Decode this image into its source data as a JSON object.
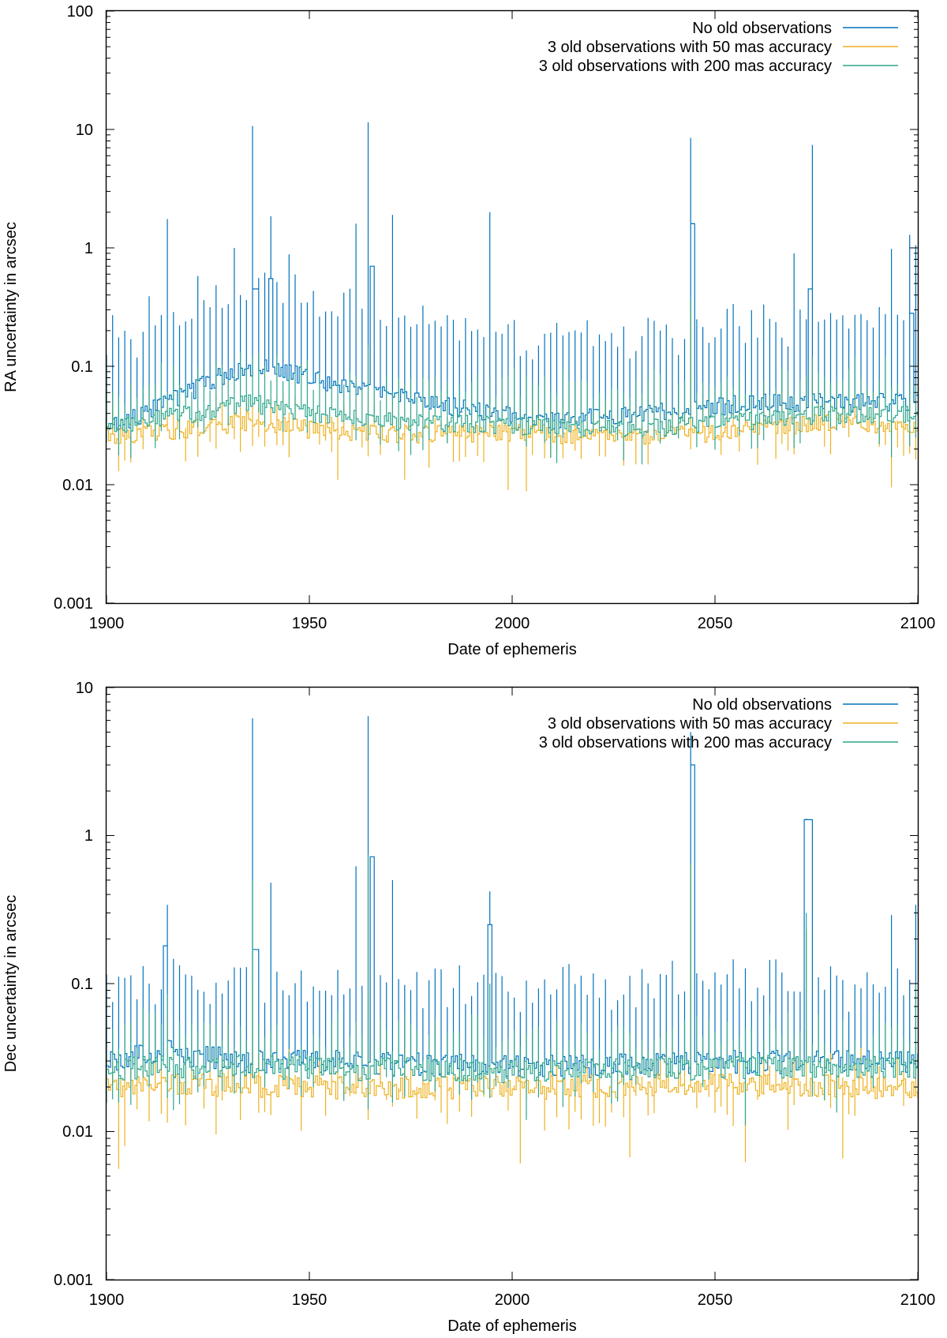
{
  "chart_data": [
    {
      "type": "line",
      "step": true,
      "xlabel": "Date of ephemeris",
      "ylabel": "RA uncertainty in arcsec",
      "xlim": [
        1900,
        2100
      ],
      "ylim": [
        0.001,
        100
      ],
      "yscale": "log",
      "x_ticks": [
        "1900",
        "1950",
        "2000",
        "2050",
        "2100"
      ],
      "y_ticks": [
        "0.001",
        "0.01",
        "0.1",
        "1",
        "10",
        "100"
      ],
      "legend_position": "top-right",
      "series": [
        {
          "name": "No old observations",
          "color": "#0072bd",
          "baseline": [
            [
              1900,
              0.03
            ],
            [
              1915,
              0.05
            ],
            [
              1930,
              0.09
            ],
            [
              1940,
              0.1
            ],
            [
              1950,
              0.08
            ],
            [
              1965,
              0.06
            ],
            [
              1980,
              0.05
            ],
            [
              1995,
              0.04
            ],
            [
              2010,
              0.035
            ],
            [
              2030,
              0.04
            ],
            [
              2045,
              0.045
            ],
            [
              2060,
              0.05
            ],
            [
              2080,
              0.05
            ],
            [
              2100,
              0.05
            ]
          ],
          "spike_factor": 4.5,
          "peaks": [
            [
              1902,
              0.27
            ],
            [
              1911,
              0.39
            ],
            [
              1915,
              1.75
            ],
            [
              1923,
              0.58
            ],
            [
              1932,
              1.0
            ],
            [
              1936,
              10.7
            ],
            [
              1941,
              1.85
            ],
            [
              1945,
              0.88
            ],
            [
              1961,
              1.6
            ],
            [
              1965,
              11.5
            ],
            [
              1970,
              1.9
            ],
            [
              1995,
              2.0
            ],
            [
              2044,
              8.5
            ],
            [
              2069,
              0.9
            ],
            [
              2074,
              7.4
            ],
            [
              2094,
              0.98
            ],
            [
              2099,
              1.05
            ]
          ],
          "plateaus": [
            [
              1936,
              1937.5,
              0.45
            ],
            [
              1940,
              1941,
              0.55
            ],
            [
              1965,
              1966,
              0.7
            ],
            [
              2044,
              2045,
              1.6
            ],
            [
              2073,
              2074,
              0.45
            ],
            [
              2098,
              2099,
              0.28
            ]
          ],
          "troughs": []
        },
        {
          "name": "3 old observations with 50 mas accuracy",
          "color": "#edb120",
          "baseline": [
            [
              1900,
              0.025
            ],
            [
              1920,
              0.03
            ],
            [
              1935,
              0.035
            ],
            [
              1950,
              0.03
            ],
            [
              1970,
              0.027
            ],
            [
              2000,
              0.028
            ],
            [
              2030,
              0.025
            ],
            [
              2060,
              0.03
            ],
            [
              2080,
              0.035
            ],
            [
              2100,
              0.03
            ]
          ],
          "spike_factor": 1.35,
          "peaks": [
            [
              1936,
              0.05
            ],
            [
              1965,
              0.06
            ],
            [
              2044,
              0.3
            ],
            [
              2074,
              0.1
            ]
          ],
          "plateaus": [],
          "troughs": [
            [
              1903,
              0.013
            ],
            [
              1957,
              0.011
            ],
            [
              1974,
              0.011
            ],
            [
              1999,
              0.009
            ],
            [
              2003,
              0.0088
            ],
            [
              2094,
              0.0095
            ]
          ]
        },
        {
          "name": "3 old observations with 200 mas accuracy",
          "color": "#2ca58d",
          "baseline": [
            [
              1900,
              0.03
            ],
            [
              1920,
              0.04
            ],
            [
              1935,
              0.05
            ],
            [
              1950,
              0.04
            ],
            [
              1970,
              0.035
            ],
            [
              2000,
              0.032
            ],
            [
              2030,
              0.03
            ],
            [
              2060,
              0.035
            ],
            [
              2080,
              0.04
            ],
            [
              2100,
              0.04
            ]
          ],
          "spike_factor": 2.0,
          "peaks": [
            [
              1936,
              0.12
            ],
            [
              1965,
              0.15
            ],
            [
              2044,
              0.38
            ],
            [
              2074,
              0.12
            ]
          ],
          "plateaus": [],
          "troughs": [
            [
              2028,
              0.016
            ],
            [
              2093,
              0.017
            ]
          ]
        }
      ]
    },
    {
      "type": "line",
      "step": true,
      "xlabel": "Date of ephemeris",
      "ylabel": "Dec uncertainty in arcsec",
      "xlim": [
        1900,
        2100
      ],
      "ylim": [
        0.001,
        10
      ],
      "yscale": "log",
      "x_ticks": [
        "1900",
        "1950",
        "2000",
        "2050",
        "2100"
      ],
      "y_ticks": [
        "0.001",
        "0.01",
        "0.1",
        "1",
        "10"
      ],
      "legend_position": "top-right",
      "series": [
        {
          "name": "No old observations",
          "color": "#0072bd",
          "baseline": [
            [
              1900,
              0.03
            ],
            [
              1915,
              0.035
            ],
            [
              1935,
              0.03
            ],
            [
              1960,
              0.03
            ],
            [
              1990,
              0.028
            ],
            [
              2020,
              0.028
            ],
            [
              2050,
              0.03
            ],
            [
              2080,
              0.03
            ],
            [
              2100,
              0.03
            ]
          ],
          "spike_factor": 3.2,
          "peaks": [
            [
              1902,
              0.075
            ],
            [
              1910,
              0.1
            ],
            [
              1915,
              0.34
            ],
            [
              1936,
              6.2
            ],
            [
              1941,
              0.48
            ],
            [
              1961,
              0.62
            ],
            [
              1965,
              6.4
            ],
            [
              1970,
              0.5
            ],
            [
              1995,
              0.42
            ],
            [
              2044,
              5.0
            ],
            [
              2073,
              1.3
            ],
            [
              2094,
              0.29
            ],
            [
              2099,
              0.34
            ]
          ],
          "plateaus": [
            [
              1914,
              1915,
              0.18
            ],
            [
              1936,
              1937.5,
              0.17
            ],
            [
              1965,
              1966,
              0.72
            ],
            [
              1994,
              1995,
              0.25
            ],
            [
              2044,
              2045,
              3.0
            ],
            [
              2072,
              2074,
              1.28
            ]
          ],
          "troughs": []
        },
        {
          "name": "3 old observations with 50 mas accuracy",
          "color": "#edb120",
          "baseline": [
            [
              1900,
              0.02
            ],
            [
              1930,
              0.021
            ],
            [
              1960,
              0.02
            ],
            [
              2000,
              0.02
            ],
            [
              2040,
              0.021
            ],
            [
              2070,
              0.021
            ],
            [
              2100,
              0.02
            ]
          ],
          "spike_factor": 1.2,
          "peaks": [
            [
              1915,
              0.06
            ],
            [
              1936,
              0.1
            ],
            [
              1965,
              0.085
            ],
            [
              2044,
              0.65
            ],
            [
              2073,
              0.23
            ]
          ],
          "plateaus": [],
          "troughs": [
            [
              1903,
              0.0056
            ],
            [
              1905,
              0.008
            ],
            [
              2002,
              0.0061
            ],
            [
              2029,
              0.0067
            ],
            [
              2057,
              0.0062
            ],
            [
              2082,
              0.0066
            ]
          ]
        },
        {
          "name": "3 old observations with 200 mas accuracy",
          "color": "#2ca58d",
          "baseline": [
            [
              1900,
              0.027
            ],
            [
              1930,
              0.028
            ],
            [
              1960,
              0.027
            ],
            [
              2000,
              0.026
            ],
            [
              2040,
              0.027
            ],
            [
              2070,
              0.028
            ],
            [
              2100,
              0.027
            ]
          ],
          "spike_factor": 1.6,
          "peaks": [
            [
              1915,
              0.085
            ],
            [
              1936,
              0.5
            ],
            [
              1965,
              0.75
            ],
            [
              1995,
              0.1
            ],
            [
              2044,
              0.65
            ],
            [
              2073,
              0.3
            ],
            [
              2099,
              0.1
            ]
          ],
          "plateaus": [],
          "troughs": [
            [
              2003,
              0.012
            ],
            [
              2057,
              0.011
            ]
          ]
        }
      ]
    }
  ]
}
